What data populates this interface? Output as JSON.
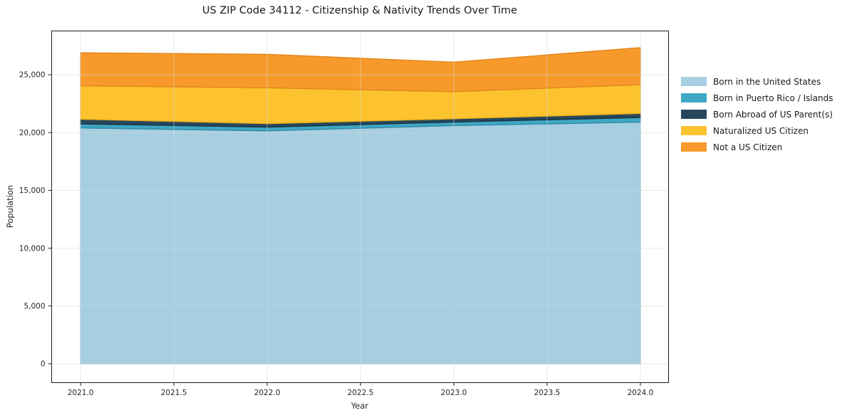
{
  "title": "US ZIP Code 34112 - Citizenship & Nativity Trends Over Time",
  "chart_data": {
    "type": "area",
    "stacked": true,
    "title": "US ZIP Code 34112 - Citizenship & Nativity Trends Over Time",
    "xlabel": "Year",
    "ylabel": "Population",
    "x": [
      2021,
      2022,
      2023,
      2024
    ],
    "series": [
      {
        "name": "Born in the United States",
        "color": "#A6CFE2",
        "edge": "#85b9d3",
        "values": [
          20400,
          20150,
          20600,
          20900
        ]
      },
      {
        "name": "Born in Puerto Rico / Islands",
        "color": "#3FA7C3",
        "edge": "#2f8ba3",
        "values": [
          350,
          320,
          310,
          400
        ]
      },
      {
        "name": "Born Abroad of US Parent(s)",
        "color": "#26485C",
        "edge": "#1a3342",
        "values": [
          400,
          300,
          280,
          350
        ]
      },
      {
        "name": "Naturalized US Citizen",
        "color": "#FCC32F",
        "edge": "#e3a81b",
        "values": [
          2900,
          3100,
          2350,
          2500
        ]
      },
      {
        "name": "Not a US Citizen",
        "color": "#F89A2B",
        "edge": "#e08418",
        "values": [
          2850,
          2900,
          2550,
          3200
        ]
      }
    ],
    "totals": [
      26900,
      26770,
      26090,
      27350
    ],
    "x_ticks": [
      "2021.0",
      "2021.5",
      "2022.0",
      "2022.5",
      "2023.0",
      "2023.5",
      "2024.0"
    ],
    "x_tick_values": [
      2021.0,
      2021.5,
      2022.0,
      2022.5,
      2023.0,
      2023.5,
      2024.0
    ],
    "y_ticks": [
      "0",
      "5,000",
      "10,000",
      "15,000",
      "20,000",
      "25,000"
    ],
    "y_tick_values": [
      0,
      5000,
      10000,
      15000,
      20000,
      25000
    ],
    "xlim": [
      2020.843,
      2024.149
    ],
    "ylim": [
      -1600,
      28820
    ],
    "grid": true,
    "legend_position": "right",
    "colors": {
      "grid": "#d9d9d9",
      "spine": "#1a1a1a",
      "tick_label": "#262626",
      "background": "#ffffff"
    }
  }
}
